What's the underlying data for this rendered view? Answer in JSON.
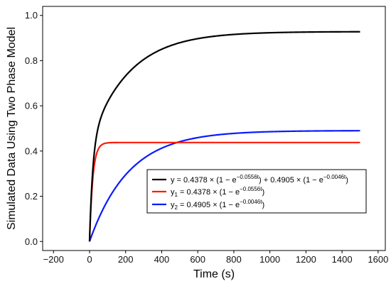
{
  "chart_data": {
    "type": "line",
    "xlabel": "Time (s)",
    "ylabel": "Simulated Data Using Two Phase Model",
    "xlim": [
      -260,
      1640
    ],
    "ylim": [
      -0.04,
      1.04
    ],
    "x_ticks": [
      -200,
      0,
      200,
      400,
      600,
      800,
      1000,
      1200,
      1400,
      1600
    ],
    "y_ticks": [
      0.0,
      0.2,
      0.4,
      0.6,
      0.8,
      1.0
    ],
    "x_tick_labels": [
      "−200",
      "0",
      "200",
      "400",
      "600",
      "800",
      "1000",
      "1200",
      "1400",
      "1600"
    ],
    "y_tick_labels": [
      "0.0",
      "0.2",
      "0.4",
      "0.6",
      "0.8",
      "1.0"
    ],
    "grid": false,
    "legend_position": "lower-right",
    "x_range": [
      0,
      1500
    ],
    "series": [
      {
        "key": "y",
        "color": "#000000",
        "components": [
          {
            "a": 0.4378,
            "k": 0.0556
          },
          {
            "a": 0.4905,
            "k": 0.0046
          }
        ],
        "legend": {
          "pre": "y = 0.4378 × (1 − e",
          "sup1": "−0.0556t",
          "mid": ") + 0.4905 × (1 − e",
          "sup2": "−0.0046t",
          "post": ")"
        }
      },
      {
        "key": "y1",
        "color": "#ff1a0a",
        "components": [
          {
            "a": 0.4378,
            "k": 0.0556
          }
        ],
        "legend": {
          "pre": "y",
          "sub": "1",
          "mid": " = 0.4378 × (1 − e",
          "sup": "−0.0556t",
          "post": ")"
        }
      },
      {
        "key": "y2",
        "color": "#0a1aff",
        "components": [
          {
            "a": 0.4905,
            "k": 0.0046
          }
        ],
        "legend": {
          "pre": "y",
          "sub": "2",
          "mid": " = 0.4905 × (1 − e",
          "sup": "−0.0046t",
          "post": ")"
        }
      }
    ]
  }
}
